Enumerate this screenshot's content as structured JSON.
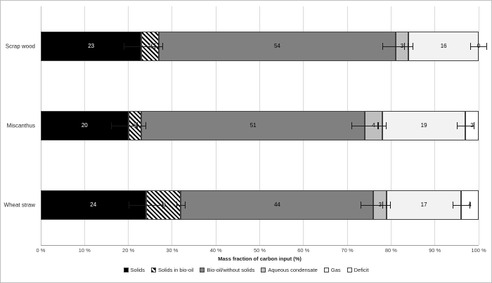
{
  "chart_data": {
    "type": "bar",
    "orientation": "horizontal",
    "stacked": true,
    "title": "",
    "xlabel": "Mass fraction of carbon input (%)",
    "ylabel": "",
    "xlim": [
      0,
      100
    ],
    "grid": true,
    "legend_position": "bottom",
    "x_ticks": [
      "0 %",
      "10 %",
      "20 %",
      "30 %",
      "40 %",
      "50 %",
      "60 %",
      "70 %",
      "80 %",
      "90 %",
      "100 %"
    ],
    "categories": [
      "Scrap wood",
      "Miscanthus",
      "Wheat straw"
    ],
    "series": [
      {
        "name": "Solids",
        "values": [
          23,
          20,
          24
        ],
        "color": "#000000",
        "pattern": "solid",
        "label_color": "#ffffff",
        "error": 4
      },
      {
        "name": "Solids in bio-oil",
        "values": [
          4,
          3,
          8
        ],
        "color": "#000000",
        "pattern": "diagonal-hatch",
        "label_color": "#ffffff",
        "error": 1
      },
      {
        "name": "Bio-oil/without solids",
        "values": [
          54,
          51,
          44
        ],
        "color": "#808080",
        "pattern": "solid",
        "label_color": "#000000",
        "error": 3
      },
      {
        "name": "Aqueous condensate",
        "values": [
          3,
          4,
          3
        ],
        "color": "#bfbfbf",
        "pattern": "solid",
        "label_color": "#000000",
        "error": 1
      },
      {
        "name": "Gas",
        "values": [
          16,
          19,
          17
        ],
        "color": "#f2f2f2",
        "pattern": "solid",
        "label_color": "#000000",
        "error": 2
      },
      {
        "name": "Deficit",
        "values": [
          0,
          3,
          4
        ],
        "color": "#ffffff",
        "pattern": "solid",
        "label_color": "#000000",
        "error": 0
      }
    ]
  }
}
